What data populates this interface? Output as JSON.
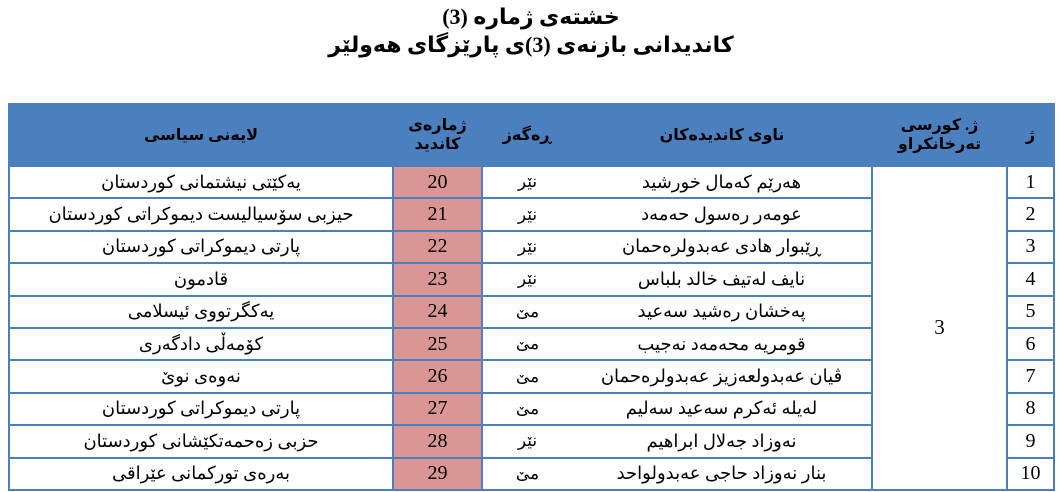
{
  "title": {
    "line1": "خشتەی ژمارە (3)",
    "line2": "کاندیدانی بازنەی (3)ی پارێزگای هەولێر"
  },
  "table": {
    "headers": {
      "row_no": "ژ",
      "seat_line1": "ژ. کورسی",
      "seat_line2": "تەرخانکراو",
      "name": "ناوی کاندیدەکان",
      "gender": "ڕەگەز",
      "number_line1": "ژمارەی",
      "number_line2": "کاندید",
      "party": "لایەنی سیاسی"
    },
    "seat_value": "3",
    "rows": [
      {
        "no": "1",
        "name": "هەرێم کەمال خورشید",
        "gender": "نێر",
        "number": "20",
        "party": "یەکێتی نیشتمانی کوردستان"
      },
      {
        "no": "2",
        "name": "عومەر رەسول حەمەد",
        "gender": "نێر",
        "number": "21",
        "party": "حیزبی سۆسیالیست دیموکراتی کوردستان"
      },
      {
        "no": "3",
        "name": "ڕێبوار هادی عەبدولرەحمان",
        "gender": "نێر",
        "number": "22",
        "party": "پارتی دیموکراتی کوردستان"
      },
      {
        "no": "4",
        "name": "نایف لەتیف خالد بلباس",
        "gender": "نێر",
        "number": "23",
        "party": "قادمون"
      },
      {
        "no": "5",
        "name": "پەخشان رەشید سەعید",
        "gender": "مێ",
        "number": "24",
        "party": "یەکگرتووی ئیسلامی"
      },
      {
        "no": "6",
        "name": "قومریە محەمەد نەجیب",
        "gender": "مێ",
        "number": "25",
        "party": "کۆمەڵی دادگەری"
      },
      {
        "no": "7",
        "name": "ڤیان عەبدولعەزیز عەبدولرەحمان",
        "gender": "مێ",
        "number": "26",
        "party": "نەوەی نوێ"
      },
      {
        "no": "8",
        "name": "لەیلە ئەکرم سەعید سەلیم",
        "gender": "مێ",
        "number": "27",
        "party": "پارتی دیموکراتی کوردستان"
      },
      {
        "no": "9",
        "name": "نەوزاد جەلال ابراهیم",
        "gender": "نێر",
        "number": "28",
        "party": "حزبی زەحمەتکێشانی کوردستان"
      },
      {
        "no": "10",
        "name": "بنار نەوزاد حاجی عەبدولواحد",
        "gender": "مێ",
        "number": "29",
        "party": "بەرەی تورکمانی عێراقی"
      }
    ]
  },
  "colors": {
    "header_bg": "#4C7FBD",
    "number_bg": "#DA9694",
    "border": "#4C7FBD",
    "text": "#000000"
  }
}
